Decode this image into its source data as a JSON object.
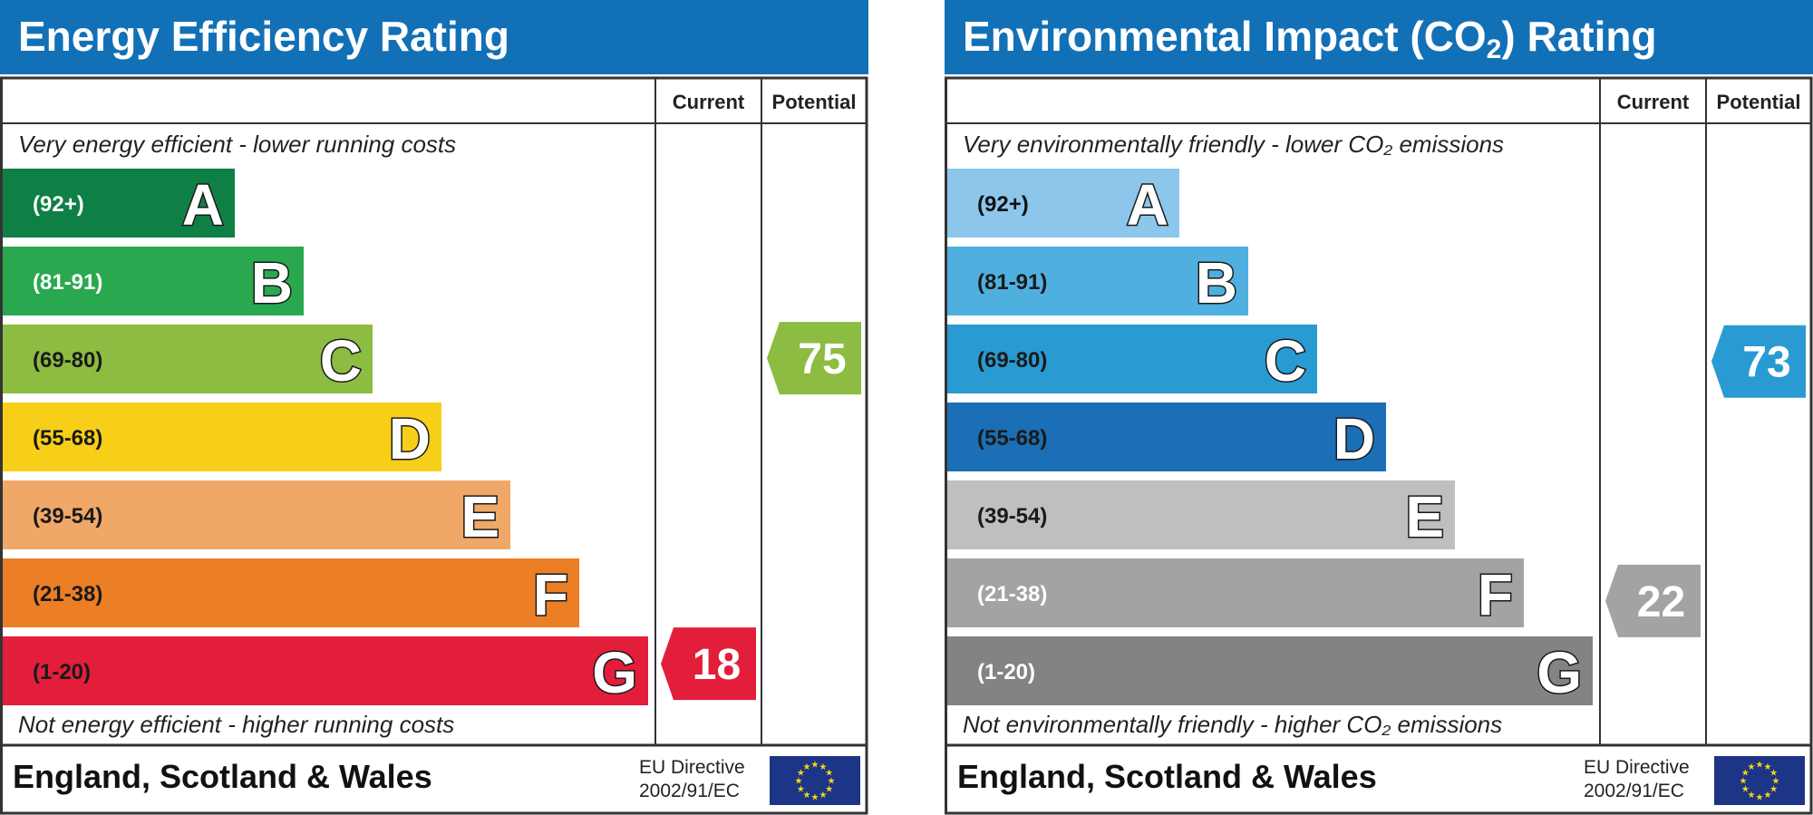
{
  "chart_data": [
    {
      "type": "bar",
      "title": "Energy Efficiency Rating",
      "columns": [
        "Current",
        "Potential"
      ],
      "top_note": "Very energy efficient - lower running costs",
      "bottom_note": "Not energy efficient - higher running costs",
      "bands": [
        {
          "letter": "A",
          "range": "(92+)",
          "color": "#0e8046"
        },
        {
          "letter": "B",
          "range": "(81-91)",
          "color": "#2aa84f"
        },
        {
          "letter": "C",
          "range": "(69-80)",
          "color": "#8cbc41"
        },
        {
          "letter": "D",
          "range": "(55-68)",
          "color": "#f7cf18"
        },
        {
          "letter": "E",
          "range": "(39-54)",
          "color": "#f0a868"
        },
        {
          "letter": "F",
          "range": "(21-38)",
          "color": "#ec7e26"
        },
        {
          "letter": "G",
          "range": "(1-20)",
          "color": "#e21e3b"
        }
      ],
      "current": {
        "value": 18,
        "band": "G",
        "color": "#e21e3b"
      },
      "potential": {
        "value": 75,
        "band": "C",
        "color": "#8cbc41"
      }
    },
    {
      "type": "bar",
      "title": "Environmental Impact (CO₂) Rating",
      "columns": [
        "Current",
        "Potential"
      ],
      "top_note": "Very environmentally friendly - lower CO₂ emissions",
      "bottom_note": "Not environmentally friendly - higher CO₂ emissions",
      "bands": [
        {
          "letter": "A",
          "range": "(92+)",
          "color": "#8dc6eb"
        },
        {
          "letter": "B",
          "range": "(81-91)",
          "color": "#4fb0e0"
        },
        {
          "letter": "C",
          "range": "(69-80)",
          "color": "#2a9ad3"
        },
        {
          "letter": "D",
          "range": "(55-68)",
          "color": "#1a6fb6"
        },
        {
          "letter": "E",
          "range": "(39-54)",
          "color": "#c0bfbd"
        },
        {
          "letter": "F",
          "range": "(21-38)",
          "color": "#a3a3a3"
        },
        {
          "letter": "G",
          "range": "(1-20)",
          "color": "#838383"
        }
      ],
      "current": {
        "value": 22,
        "band": "F",
        "color": "#a3a3a3"
      },
      "potential": {
        "value": 73,
        "band": "C",
        "color": "#2a9ad3"
      }
    }
  ],
  "footer": {
    "region": "England, Scotland & Wales",
    "eu_directive_line1": "EU Directive",
    "eu_directive_line2": "2002/91/EC"
  },
  "colors": {
    "header_blue": "#1270b6",
    "eu_flag_blue": "#1c3587",
    "eu_star_yellow": "#f3d416"
  },
  "icons": [
    "eu-flag-icon"
  ]
}
